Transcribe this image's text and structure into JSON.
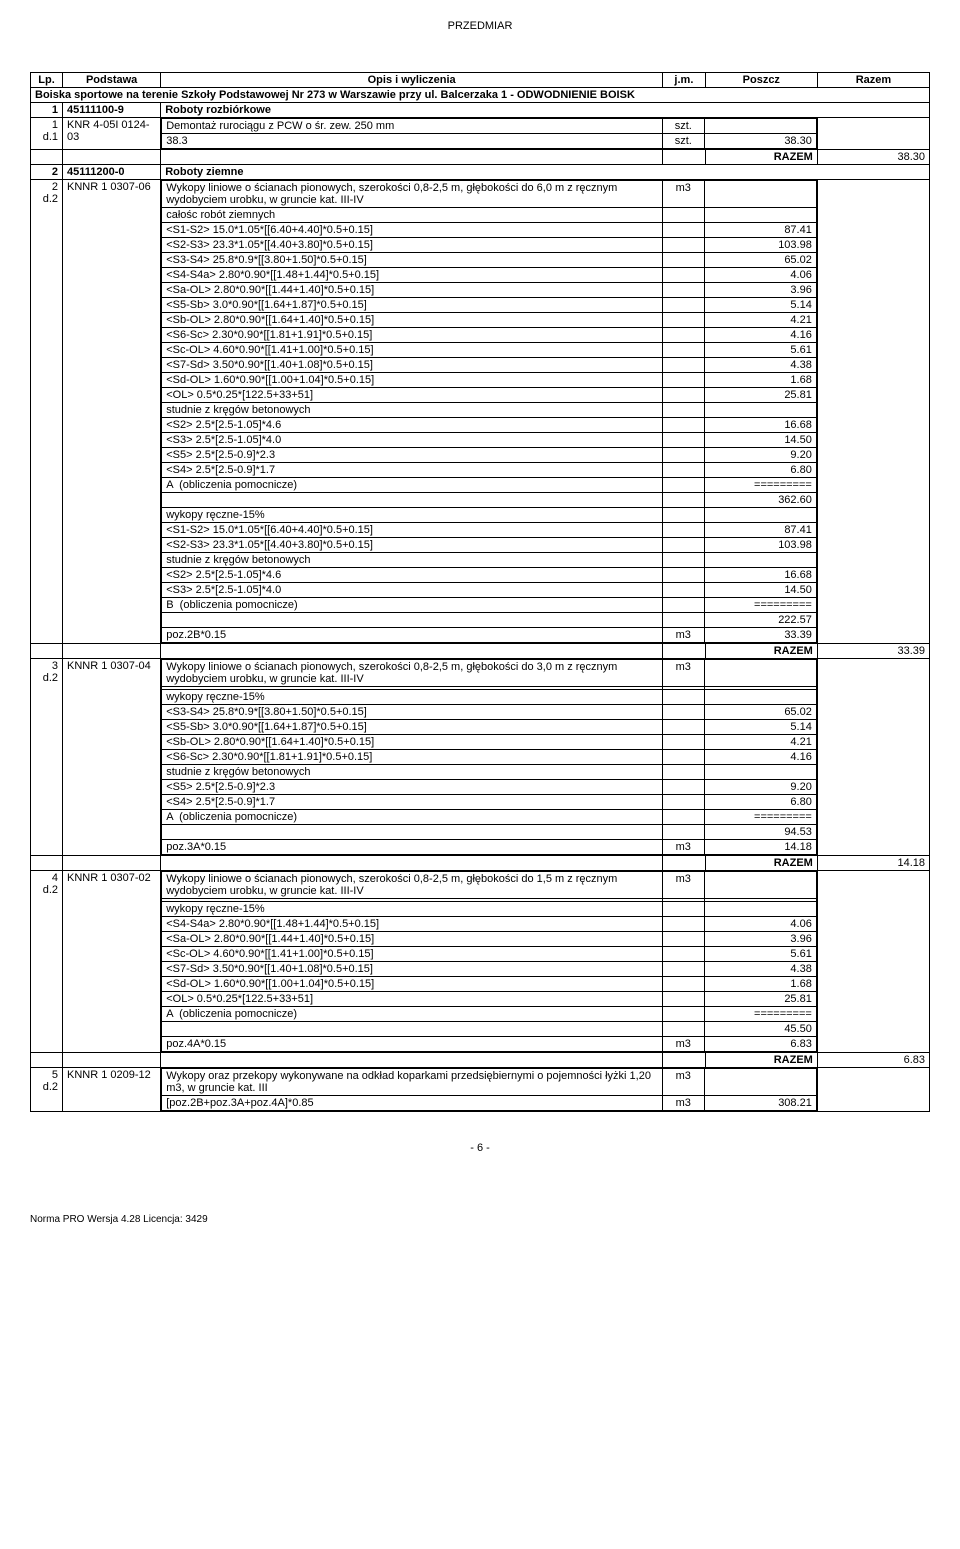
{
  "header": "PRZEDMIAR",
  "columns": {
    "lp": "Lp.",
    "podstawa": "Podstawa",
    "opis": "Opis i wyliczenia",
    "jm": "j.m.",
    "poszcz": "Poszcz",
    "razem": "Razem"
  },
  "title_row": "Boiska sportowe na terenie Szkoły Podstawowej Nr 273 w Warszawie przy ul. Balcerzaka 1 - ODWODNIENIE BOISK",
  "sections": [
    {
      "lp": "1",
      "code": "45111100-9",
      "title": "Roboty rozbiórkowe",
      "items": [
        {
          "lp": "1",
          "dprefix": "d.1",
          "code": "KNR 4-05I 0124-03",
          "desc": "Demontaż rurociągu z PCW o śr. zew. 250 mm",
          "jm": "szt.",
          "calcs": [
            {
              "text": "38.3",
              "jm": "szt.",
              "val": "38.30"
            }
          ],
          "razem_label": "RAZEM",
          "razem": "38.30"
        }
      ]
    },
    {
      "lp": "2",
      "code": "45111200-0",
      "title": "Roboty ziemne",
      "items": [
        {
          "lp": "2",
          "dprefix": "d.2",
          "code": "KNNR 1 0307-06",
          "desc": "Wykopy liniowe o ścianach pionowych, szerokości 0,8-2,5 m, głębokości do 6,0 m z ręcznym wydobyciem urobku, w gruncie kat. III-IV",
          "jm": "m3",
          "calcs": [
            {
              "text": "całośc robót ziemnych",
              "val": ""
            },
            {
              "text": "<S1-S2> 15.0*1.05*[[6.40+4.40]*0.5+0.15]",
              "val": "87.41"
            },
            {
              "text": "<S2-S3> 23.3*1.05*[[4.40+3.80]*0.5+0.15]",
              "val": "103.98"
            },
            {
              "text": "<S3-S4> 25.8*0.9*[[3.80+1.50]*0.5+0.15]",
              "val": "65.02"
            },
            {
              "text": "<S4-S4a> 2.80*0.90*[[1.48+1.44]*0.5+0.15]",
              "val": "4.06"
            },
            {
              "text": "<Sa-OL> 2.80*0.90*[[1.44+1.40]*0.5+0.15]",
              "val": "3.96"
            },
            {
              "text": "<S5-Sb> 3.0*0.90*[[1.64+1.87]*0.5+0.15]",
              "val": "5.14"
            },
            {
              "text": "<Sb-OL> 2.80*0.90*[[1.64+1.40]*0.5+0.15]",
              "val": "4.21"
            },
            {
              "text": "<S6-Sc> 2.30*0.90*[[1.81+1.91]*0.5+0.15]",
              "val": "4.16"
            },
            {
              "text": "<Sc-OL> 4.60*0.90*[[1.41+1.00]*0.5+0.15]",
              "val": "5.61"
            },
            {
              "text": "<S7-Sd> 3.50*0.90*[[1.40+1.08]*0.5+0.15]",
              "val": "4.38"
            },
            {
              "text": "<Sd-OL> 1.60*0.90*[[1.00+1.04]*0.5+0.15]",
              "val": "1.68"
            },
            {
              "text": "<OL> 0.5*0.25*[122.5+33+51]",
              "val": "25.81"
            },
            {
              "text": "studnie z kręgów betonowych",
              "val": ""
            },
            {
              "text": "<S2> 2.5*[2.5-1.05]*4.6",
              "val": "16.68"
            },
            {
              "text": "<S3> 2.5*[2.5-1.05]*4.0",
              "val": "14.50"
            },
            {
              "text": "<S5> 2.5*[2.5-0.9]*2.3",
              "val": "9.20"
            },
            {
              "text": "<S4> 2.5*[2.5-0.9]*1.7",
              "val": "6.80"
            },
            {
              "text": "A  (obliczenia pomocnicze)",
              "val": "========="
            },
            {
              "text": "",
              "val": "362.60"
            },
            {
              "text": "wykopy ręczne-15%",
              "val": ""
            },
            {
              "text": "<S1-S2> 15.0*1.05*[[6.40+4.40]*0.5+0.15]",
              "val": "87.41"
            },
            {
              "text": "<S2-S3> 23.3*1.05*[[4.40+3.80]*0.5+0.15]",
              "val": "103.98"
            },
            {
              "text": "studnie z kręgów betonowych",
              "val": ""
            },
            {
              "text": "<S2> 2.5*[2.5-1.05]*4.6",
              "val": "16.68"
            },
            {
              "text": "<S3> 2.5*[2.5-1.05]*4.0",
              "val": "14.50"
            },
            {
              "text": "B  (obliczenia pomocnicze)",
              "val": "========="
            },
            {
              "text": "",
              "val": "222.57"
            },
            {
              "text": "poz.2B*0.15",
              "jm": "m3",
              "val": "33.39"
            }
          ],
          "razem_label": "RAZEM",
          "razem": "33.39"
        },
        {
          "lp": "3",
          "dprefix": "d.2",
          "code": "KNNR 1 0307-04",
          "desc": "Wykopy liniowe o ścianach pionowych, szerokości 0,8-2,5 m, głębokości do 3,0 m z ręcznym wydobyciem urobku, w gruncie kat. III-IV",
          "jm": "m3",
          "calcs": [
            {
              "text": "",
              "val": ""
            },
            {
              "text": "wykopy ręczne-15%",
              "val": ""
            },
            {
              "text": "<S3-S4> 25.8*0.9*[[3.80+1.50]*0.5+0.15]",
              "val": "65.02"
            },
            {
              "text": "<S5-Sb> 3.0*0.90*[[1.64+1.87]*0.5+0.15]",
              "val": "5.14"
            },
            {
              "text": "<Sb-OL> 2.80*0.90*[[1.64+1.40]*0.5+0.15]",
              "val": "4.21"
            },
            {
              "text": "<S6-Sc> 2.30*0.90*[[1.81+1.91]*0.5+0.15]",
              "val": "4.16"
            },
            {
              "text": "studnie z kręgów betonowych",
              "val": ""
            },
            {
              "text": "<S5> 2.5*[2.5-0.9]*2.3",
              "val": "9.20"
            },
            {
              "text": "<S4> 2.5*[2.5-0.9]*1.7",
              "val": "6.80"
            },
            {
              "text": "A  (obliczenia pomocnicze)",
              "val": "========="
            },
            {
              "text": "",
              "val": "94.53"
            },
            {
              "text": "poz.3A*0.15",
              "jm": "m3",
              "val": "14.18"
            }
          ],
          "razem_label": "RAZEM",
          "razem": "14.18"
        },
        {
          "lp": "4",
          "dprefix": "d.2",
          "code": "KNNR 1 0307-02",
          "desc": "Wykopy liniowe o ścianach pionowych, szerokości 0,8-2,5 m, głębokości do 1,5 m z ręcznym wydobyciem urobku, w gruncie kat. III-IV",
          "jm": "m3",
          "calcs": [
            {
              "text": "",
              "val": ""
            },
            {
              "text": "wykopy ręczne-15%",
              "val": ""
            },
            {
              "text": "<S4-S4a> 2.80*0.90*[[1.48+1.44]*0.5+0.15]",
              "val": "4.06"
            },
            {
              "text": "<Sa-OL> 2.80*0.90*[[1.44+1.40]*0.5+0.15]",
              "val": "3.96"
            },
            {
              "text": "<Sc-OL> 4.60*0.90*[[1.41+1.00]*0.5+0.15]",
              "val": "5.61"
            },
            {
              "text": "<S7-Sd> 3.50*0.90*[[1.40+1.08]*0.5+0.15]",
              "val": "4.38"
            },
            {
              "text": "<Sd-OL> 1.60*0.90*[[1.00+1.04]*0.5+0.15]",
              "val": "1.68"
            },
            {
              "text": "<OL> 0.5*0.25*[122.5+33+51]",
              "val": "25.81"
            },
            {
              "text": "A  (obliczenia pomocnicze)",
              "val": "========="
            },
            {
              "text": "",
              "val": "45.50"
            },
            {
              "text": "poz.4A*0.15",
              "jm": "m3",
              "val": "6.83"
            }
          ],
          "razem_label": "RAZEM",
          "razem": "6.83"
        },
        {
          "lp": "5",
          "dprefix": "d.2",
          "code": "KNNR 1 0209-12",
          "desc": "Wykopy oraz przekopy wykonywane na odkład koparkami przedsiębiernymi o pojemności łyżki 1,20 m3, w gruncie kat. III",
          "jm": "m3",
          "calcs": [
            {
              "text": "[poz.2B+poz.3A+poz.4A]*0.85",
              "jm": "m3",
              "val": "308.21"
            }
          ],
          "razem_label": "",
          "razem": ""
        }
      ]
    }
  ],
  "page_num": "- 6 -",
  "footer": "Norma PRO Wersja 4.28 Licencja: 3429"
}
